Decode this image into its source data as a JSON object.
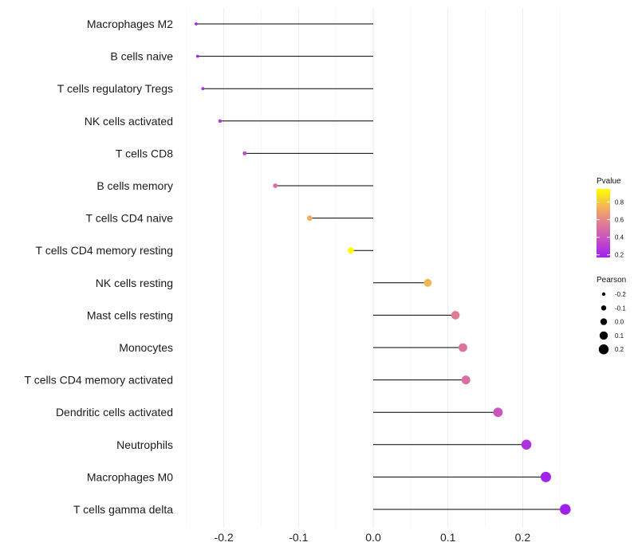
{
  "chart_data": {
    "type": "lollipop",
    "title": "",
    "xlabel": "",
    "ylabel": "",
    "xlim": [
      -0.25,
      0.27
    ],
    "x_ticks": [
      -0.2,
      -0.1,
      0.0,
      0.1,
      0.2
    ],
    "x_tick_labels": [
      "-0.2",
      "-0.1",
      "0.0",
      "0.1",
      "0.2"
    ],
    "grid": true,
    "categories": [
      "Macrophages M2",
      "B cells naive",
      "T cells regulatory  Tregs",
      "NK cells activated",
      "T cells CD8",
      "B cells memory",
      "T cells CD4 naive",
      "T cells CD4 memory resting",
      "NK cells resting",
      "Mast cells resting",
      "Monocytes",
      "T cells CD4 memory activated",
      "Dendritic cells activated",
      "Neutrophils",
      "Macrophages M0",
      "T cells gamma delta"
    ],
    "pearson": [
      -0.237,
      -0.235,
      -0.228,
      -0.205,
      -0.172,
      -0.131,
      -0.085,
      -0.03,
      0.073,
      0.11,
      0.12,
      0.124,
      0.167,
      0.205,
      0.231,
      0.257
    ],
    "pvalue": [
      0.18,
      0.19,
      0.22,
      0.25,
      0.35,
      0.5,
      0.72,
      0.95,
      0.75,
      0.55,
      0.52,
      0.5,
      0.4,
      0.25,
      0.18,
      0.17
    ],
    "color_legend": {
      "title": "Pvalue",
      "ticks": [
        0.2,
        0.4,
        0.6,
        0.8
      ],
      "tick_labels": [
        "0.2",
        "0.4",
        "0.6",
        "0.8"
      ],
      "range": [
        0.17,
        0.95
      ],
      "colors": [
        "#a020f0",
        "#d05cb5",
        "#f0a070",
        "#ffff00"
      ],
      "position": "right"
    },
    "size_legend": {
      "title": "Pearson",
      "values": [
        -0.2,
        -0.1,
        0.0,
        0.1,
        0.2
      ],
      "labels": [
        "-0.2",
        "-0.1",
        "0.0",
        "0.1",
        "0.2"
      ],
      "position": "right"
    }
  }
}
